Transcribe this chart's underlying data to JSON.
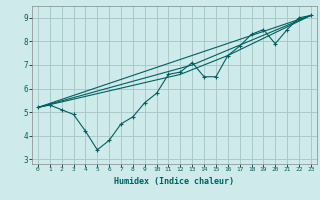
{
  "xlabel": "Humidex (Indice chaleur)",
  "ylabel": "",
  "bg_color": "#ceeaea",
  "grid_color": "#aacaca",
  "line_color": "#006060",
  "xlim": [
    -0.5,
    23.5
  ],
  "ylim": [
    2.8,
    9.5
  ],
  "xticks": [
    0,
    1,
    2,
    3,
    4,
    5,
    6,
    7,
    8,
    9,
    10,
    11,
    12,
    13,
    14,
    15,
    16,
    17,
    18,
    19,
    20,
    21,
    22,
    23
  ],
  "yticks": [
    3,
    4,
    5,
    6,
    7,
    8,
    9
  ],
  "main_x": [
    0,
    1,
    2,
    3,
    4,
    5,
    6,
    7,
    8,
    9,
    10,
    11,
    12,
    13,
    14,
    15,
    16,
    17,
    18,
    19,
    20,
    21,
    22,
    23
  ],
  "main_y": [
    5.2,
    5.3,
    5.1,
    4.9,
    4.2,
    3.4,
    3.8,
    4.5,
    4.8,
    5.4,
    5.8,
    6.6,
    6.7,
    7.1,
    6.5,
    6.5,
    7.4,
    7.8,
    8.3,
    8.5,
    7.9,
    8.5,
    9.0,
    9.1
  ],
  "line2_x": [
    0,
    23
  ],
  "line2_y": [
    5.2,
    9.1
  ],
  "line3_x": [
    0,
    12,
    16,
    23
  ],
  "line3_y": [
    5.2,
    6.6,
    7.4,
    9.1
  ],
  "line4_x": [
    0,
    13,
    23
  ],
  "line4_y": [
    5.2,
    7.0,
    9.1
  ]
}
